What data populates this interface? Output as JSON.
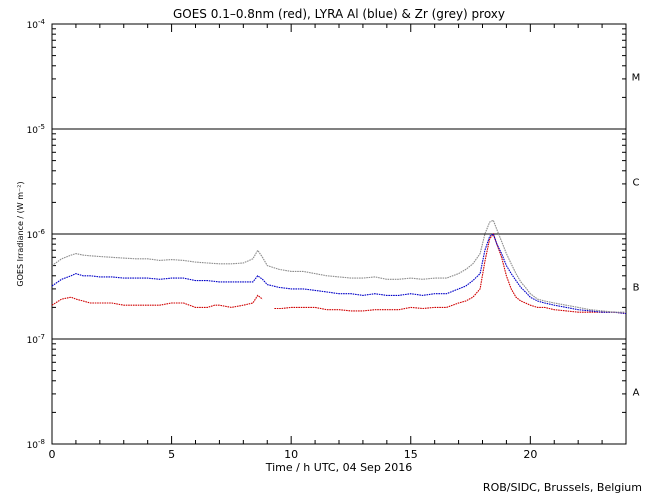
{
  "chart_data": {
    "type": "line",
    "title": "GOES 0.1–0.8nm (red), LYRA Al (blue) & Zr (grey) proxy",
    "xlabel": "Time / h UTC, 04 Sep 2016",
    "ylabel": "GOES Irradiance / (W m⁻²)",
    "xlim": [
      0,
      24
    ],
    "ylim": [
      1e-08,
      0.0001
    ],
    "yscale": "log",
    "x_ticks": [
      0,
      5,
      10,
      15,
      20
    ],
    "x_tick_labels": [
      "0",
      "5",
      "10",
      "15",
      "20"
    ],
    "y_ticks": [
      1e-08,
      1e-07,
      1e-06,
      1e-05,
      0.0001
    ],
    "y_tick_labels": [
      {
        "base": "10",
        "exp": "-8"
      },
      {
        "base": "10",
        "exp": "-7"
      },
      {
        "base": "10",
        "exp": "-6"
      },
      {
        "base": "10",
        "exp": "-5"
      },
      {
        "base": "10",
        "exp": "-4"
      }
    ],
    "class_thresholds": [
      1e-07,
      1e-06,
      1e-05
    ],
    "class_labels": [
      {
        "label": "A",
        "value": 3.16e-08
      },
      {
        "label": "B",
        "value": 3.16e-07
      },
      {
        "label": "C",
        "value": 3.16e-06
      },
      {
        "label": "M",
        "value": 3.16e-05
      }
    ],
    "series": [
      {
        "color": "#d00000",
        "x": [
          0.0,
          0.4,
          0.8,
          1.0,
          1.3,
          1.6,
          2.0,
          2.5,
          3.0,
          3.5,
          4.0,
          4.5,
          5.0,
          5.5,
          6.0,
          6.5,
          6.8,
          7.0,
          7.5,
          8.0,
          8.4,
          8.6,
          8.8,
          9.3,
          9.6,
          10.0,
          10.5,
          11.0,
          11.5,
          12.0,
          12.5,
          13.0,
          13.5,
          14.0,
          14.5,
          15.0,
          15.5,
          16.0,
          16.5,
          17.0,
          17.3,
          17.6,
          17.9,
          18.1,
          18.3,
          18.45,
          18.6,
          18.8,
          19.0,
          19.2,
          19.4,
          19.6,
          19.8,
          20.0,
          20.3,
          20.6,
          21.0,
          21.5,
          22.0,
          22.5,
          23.0,
          23.5,
          24.0
        ],
        "y": [
          2.1e-07,
          2.4e-07,
          2.5e-07,
          2.4e-07,
          2.3e-07,
          2.2e-07,
          2.2e-07,
          2.2e-07,
          2.1e-07,
          2.1e-07,
          2.1e-07,
          2.1e-07,
          2.2e-07,
          2.2e-07,
          2e-07,
          2e-07,
          2.1e-07,
          2.1e-07,
          2e-07,
          2.1e-07,
          2.2e-07,
          2.6e-07,
          2.4e-07,
          1.95e-07,
          1.95e-07,
          2e-07,
          2e-07,
          2e-07,
          1.9e-07,
          1.9e-07,
          1.85e-07,
          1.85e-07,
          1.9e-07,
          1.9e-07,
          1.9e-07,
          2e-07,
          1.95e-07,
          2e-07,
          2e-07,
          2.2e-07,
          2.3e-07,
          2.5e-07,
          3e-07,
          5.5e-07,
          9e-07,
          1e-06,
          8e-07,
          6e-07,
          4e-07,
          3e-07,
          2.5e-07,
          2.3e-07,
          2.2e-07,
          2.1e-07,
          2e-07,
          2e-07,
          1.9e-07,
          1.85e-07,
          1.8e-07,
          1.8e-07,
          1.8e-07,
          1.8e-07,
          1.75e-07
        ],
        "gaps_after": [
          22
        ]
      },
      {
        "color": "#0000c8",
        "x": [
          0.0,
          0.4,
          0.8,
          1.0,
          1.3,
          1.6,
          2.0,
          2.5,
          3.0,
          3.5,
          4.0,
          4.5,
          5.0,
          5.5,
          6.0,
          6.5,
          7.0,
          7.5,
          8.0,
          8.4,
          8.6,
          8.8,
          9.0,
          9.5,
          10.0,
          10.5,
          11.0,
          11.5,
          12.0,
          12.5,
          13.0,
          13.5,
          14.0,
          14.5,
          15.0,
          15.5,
          16.0,
          16.5,
          17.0,
          17.3,
          17.6,
          17.9,
          18.1,
          18.3,
          18.45,
          18.6,
          18.8,
          19.0,
          19.2,
          19.4,
          19.6,
          19.8,
          20.0,
          20.3,
          20.6,
          21.0,
          21.5,
          22.0,
          22.5,
          23.0,
          23.5,
          24.0
        ],
        "y": [
          3.2e-07,
          3.7e-07,
          4e-07,
          4.2e-07,
          4e-07,
          4e-07,
          3.9e-07,
          3.9e-07,
          3.8e-07,
          3.8e-07,
          3.8e-07,
          3.7e-07,
          3.8e-07,
          3.8e-07,
          3.6e-07,
          3.6e-07,
          3.5e-07,
          3.5e-07,
          3.5e-07,
          3.5e-07,
          4e-07,
          3.7e-07,
          3.3e-07,
          3.1e-07,
          3e-07,
          3e-07,
          2.9e-07,
          2.8e-07,
          2.7e-07,
          2.7e-07,
          2.6e-07,
          2.7e-07,
          2.6e-07,
          2.6e-07,
          2.7e-07,
          2.6e-07,
          2.7e-07,
          2.7e-07,
          3e-07,
          3.2e-07,
          3.6e-07,
          4.2e-07,
          7e-07,
          9.5e-07,
          1e-06,
          8e-07,
          6.5e-07,
          5e-07,
          4.2e-07,
          3.6e-07,
          3.1e-07,
          2.8e-07,
          2.5e-07,
          2.3e-07,
          2.2e-07,
          2.1e-07,
          2e-07,
          1.9e-07,
          1.85e-07,
          1.8e-07,
          1.8e-07,
          1.75e-07
        ]
      },
      {
        "color": "#8c8c8c",
        "x": [
          0.0,
          0.4,
          0.8,
          1.0,
          1.3,
          1.6,
          2.0,
          2.5,
          3.0,
          3.5,
          4.0,
          4.5,
          5.0,
          5.5,
          6.0,
          6.5,
          7.0,
          7.5,
          8.0,
          8.4,
          8.6,
          8.8,
          9.0,
          9.5,
          10.0,
          10.5,
          11.0,
          11.5,
          12.0,
          12.5,
          13.0,
          13.5,
          14.0,
          14.5,
          15.0,
          15.5,
          16.0,
          16.5,
          17.0,
          17.3,
          17.6,
          17.9,
          18.1,
          18.3,
          18.45,
          18.6,
          18.8,
          19.0,
          19.2,
          19.4,
          19.6,
          19.8,
          20.0,
          20.3,
          20.6,
          21.0,
          21.5,
          22.0,
          22.5,
          23.0,
          23.5,
          24.0
        ],
        "y": [
          5e-07,
          5.8e-07,
          6.3e-07,
          6.5e-07,
          6.3e-07,
          6.2e-07,
          6.1e-07,
          6e-07,
          5.9e-07,
          5.8e-07,
          5.8e-07,
          5.6e-07,
          5.7e-07,
          5.6e-07,
          5.4e-07,
          5.3e-07,
          5.2e-07,
          5.2e-07,
          5.3e-07,
          5.8e-07,
          7e-07,
          6e-07,
          5e-07,
          4.6e-07,
          4.4e-07,
          4.4e-07,
          4.2e-07,
          4e-07,
          3.9e-07,
          3.8e-07,
          3.8e-07,
          3.9e-07,
          3.7e-07,
          3.7e-07,
          3.8e-07,
          3.7e-07,
          3.8e-07,
          3.8e-07,
          4.2e-07,
          4.6e-07,
          5.2e-07,
          6.5e-07,
          1e-06,
          1.3e-06,
          1.35e-06,
          1.1e-06,
          8.5e-07,
          6.5e-07,
          5.2e-07,
          4.2e-07,
          3.5e-07,
          3.1e-07,
          2.7e-07,
          2.4e-07,
          2.3e-07,
          2.2e-07,
          2.1e-07,
          2e-07,
          1.9e-07,
          1.85e-07,
          1.8e-07,
          1.8e-07
        ]
      }
    ],
    "grid": false,
    "legend": "none"
  },
  "footer": {
    "credit": "ROB/SIDC, Brussels, Belgium"
  }
}
